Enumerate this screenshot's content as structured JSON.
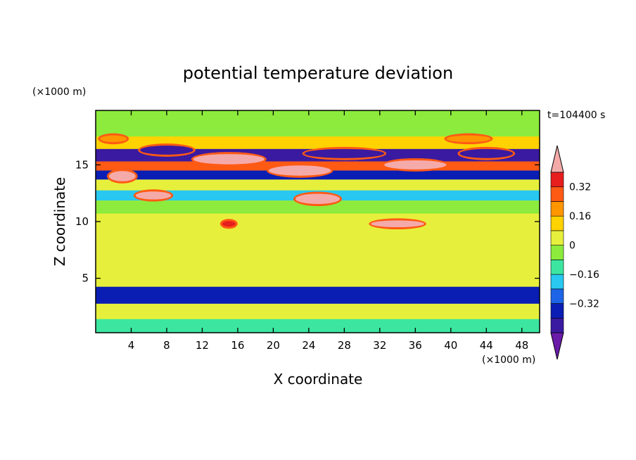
{
  "chart_data": {
    "type": "heatmap",
    "title": "potential temperature deviation",
    "xlabel": "X coordinate",
    "ylabel": "Z coordinate",
    "x_unit": "(×1000 m)",
    "y_unit": "(×1000 m)",
    "time_label": "t=104400 s",
    "xlim": [
      0,
      50
    ],
    "ylim": [
      0.2,
      19.8
    ],
    "x_ticks": [
      4,
      8,
      12,
      16,
      20,
      24,
      28,
      32,
      36,
      40,
      44,
      48
    ],
    "y_ticks": [
      5,
      10,
      15
    ],
    "colorbar": {
      "levels": [
        -0.48,
        -0.4,
        -0.32,
        -0.24,
        -0.16,
        -0.08,
        0,
        0.08,
        0.16,
        0.24,
        0.32,
        0.4,
        0.48
      ],
      "tick_values": [
        -0.32,
        -0.16,
        0,
        0.16,
        0.32
      ],
      "tick_labels": [
        "−0.32",
        "−0.16",
        "0",
        "0.16",
        "0.32"
      ],
      "colors": [
        "#6a1ba8",
        "#3a1aa0",
        "#0a1eb4",
        "#1e64e6",
        "#28c8f0",
        "#3ce6a0",
        "#8ceb3c",
        "#e6f03c",
        "#ffd200",
        "#ff9600",
        "#ff5a14",
        "#e61e1e",
        "#f5aaaa"
      ],
      "extend": "both"
    },
    "bands": [
      {
        "z": 18.0,
        "value": -0.03
      },
      {
        "z": 17.0,
        "value": 0.1
      },
      {
        "z": 15.8,
        "value": -0.42
      },
      {
        "z": 14.8,
        "value": 0.3
      },
      {
        "z": 14.2,
        "value": -0.4
      },
      {
        "z": 13.2,
        "value": 0.0
      },
      {
        "z": 12.3,
        "value": -0.22
      },
      {
        "z": 11.4,
        "value": -0.05
      },
      {
        "z": 10.0,
        "value": 0.0
      },
      {
        "z": 7.5,
        "value": 0.03
      },
      {
        "z": 5.0,
        "value": 0.0
      },
      {
        "z": 3.5,
        "value": -0.35
      },
      {
        "z": 2.0,
        "value": 0.05
      },
      {
        "z": 0.8,
        "value": -0.1
      }
    ],
    "features": [
      {
        "x": 15,
        "z": 15.5,
        "w": 8,
        "h": 0.9,
        "value": 0.5
      },
      {
        "x": 23,
        "z": 14.5,
        "w": 7,
        "h": 0.9,
        "value": 0.5
      },
      {
        "x": 36,
        "z": 15.0,
        "w": 7,
        "h": 0.8,
        "value": 0.5
      },
      {
        "x": 3,
        "z": 14.0,
        "w": 3,
        "h": 0.9,
        "value": 0.5
      },
      {
        "x": 6.5,
        "z": 12.3,
        "w": 4,
        "h": 0.7,
        "value": 0.5
      },
      {
        "x": 25,
        "z": 12.0,
        "w": 5,
        "h": 0.9,
        "value": 0.5
      },
      {
        "x": 34,
        "z": 9.8,
        "w": 6,
        "h": 0.6,
        "value": 0.4
      },
      {
        "x": 15,
        "z": 9.8,
        "w": 1.5,
        "h": 0.5,
        "value": 0.35
      },
      {
        "x": 28,
        "z": 16.0,
        "w": 9,
        "h": 0.8,
        "value": -0.45
      },
      {
        "x": 8,
        "z": 16.3,
        "w": 6,
        "h": 0.8,
        "value": -0.45
      },
      {
        "x": 44,
        "z": 16.0,
        "w": 6,
        "h": 0.8,
        "value": -0.45
      },
      {
        "x": 2,
        "z": 17.3,
        "w": 3,
        "h": 0.6,
        "value": 0.2
      },
      {
        "x": 42,
        "z": 17.3,
        "w": 5,
        "h": 0.6,
        "value": 0.2
      }
    ]
  }
}
